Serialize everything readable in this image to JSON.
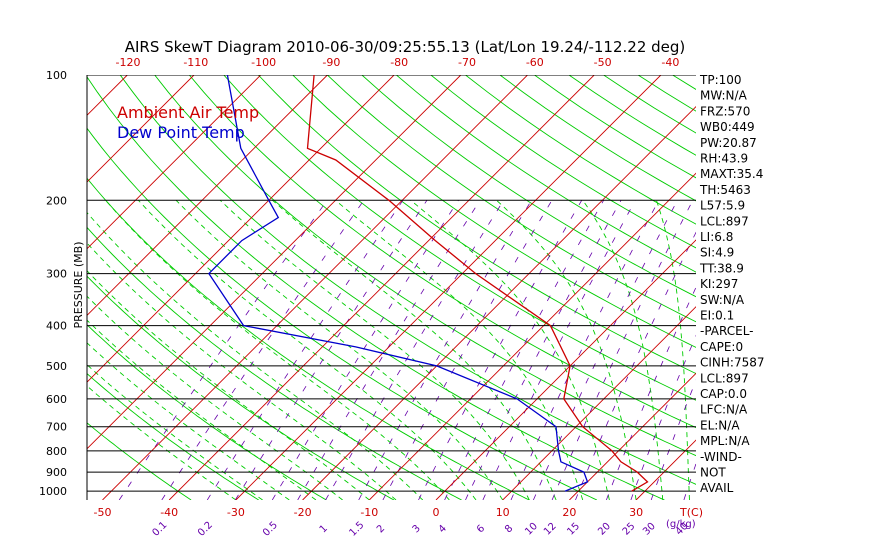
{
  "chart_data": {
    "type": "line",
    "title": "AIRS SkewT Diagram 2010-06-30/09:25:55.13 (Lat/Lon 19.24/-112.22 deg)",
    "ylabel": "PRESSURE (MB)",
    "y_scale": "log",
    "ylim": [
      1050,
      100
    ],
    "pressure_ticks": [
      100,
      200,
      300,
      400,
      500,
      600,
      700,
      800,
      900,
      1000
    ],
    "top_temp_ticks": [
      "-120",
      "-110",
      "-100",
      "-90",
      "-80",
      "-70",
      "-60",
      "-50",
      "-40"
    ],
    "bottom_temp_ticks": [
      "-50",
      "-40",
      "-30",
      "-20",
      "-10",
      "0",
      "10",
      "20",
      "30"
    ],
    "bottom_temp_unit": "T(C)",
    "mixing_ratio_labels": [
      "0.1",
      "0.2",
      "0.5",
      "1",
      "1.5",
      "2",
      "3",
      "4",
      "6",
      "8",
      "10",
      "12",
      "15",
      "20",
      "25",
      "30",
      "40"
    ],
    "mixing_ratio_unit": "(g/kg)",
    "legend": [
      {
        "label": "Ambient Air Temp",
        "color": "#cc0000"
      },
      {
        "label": "Dew Point Temp",
        "color": "#0000cc"
      }
    ],
    "series": [
      {
        "name": "Ambient Air Temp",
        "color": "#cc0000",
        "points": [
          [
            1000,
            28
          ],
          [
            950,
            29
          ],
          [
            900,
            26
          ],
          [
            850,
            22
          ],
          [
            800,
            19
          ],
          [
            700,
            11
          ],
          [
            600,
            4
          ],
          [
            500,
            0
          ],
          [
            400,
            -9
          ],
          [
            300,
            -28
          ],
          [
            250,
            -39
          ],
          [
            200,
            -52
          ],
          [
            160,
            -66
          ],
          [
            150,
            -72
          ],
          [
            100,
            -82
          ]
        ]
      },
      {
        "name": "Dew Point Temp",
        "color": "#0000cc",
        "points": [
          [
            1000,
            18
          ],
          [
            950,
            20
          ],
          [
            900,
            18
          ],
          [
            850,
            13
          ],
          [
            800,
            11
          ],
          [
            700,
            7
          ],
          [
            600,
            -3
          ],
          [
            500,
            -20
          ],
          [
            450,
            -35
          ],
          [
            400,
            -55
          ],
          [
            300,
            -68
          ],
          [
            250,
            -68
          ],
          [
            220,
            -66
          ],
          [
            200,
            -70
          ],
          [
            150,
            -82
          ],
          [
            100,
            -95
          ]
        ]
      }
    ],
    "indices": [
      "TP:100",
      "MW:N/A",
      "FRZ:570",
      "WB0:449",
      "PW:20.87",
      "RH:43.9",
      "MAXT:35.4",
      "TH:5463",
      "L57:5.9",
      "LCL:897",
      "LI:6.8",
      "SI:4.9",
      "TT:38.9",
      "KI:297",
      "SW:N/A",
      "EI:0.1",
      "-PARCEL-",
      "CAPE:0",
      "CINH:7587",
      "LCL:897",
      "CAP:0.0",
      "LFC:N/A",
      "EL:N/A",
      "MPL:N/A",
      "-WIND-",
      "NOT",
      "AVAIL"
    ]
  },
  "colors": {
    "isotherm": "#cc0000",
    "dry_adiabat": "#00cc00",
    "moist_adiabat": "#00cc00",
    "mixing_ratio": "#6600aa",
    "isobar": "#000000"
  }
}
